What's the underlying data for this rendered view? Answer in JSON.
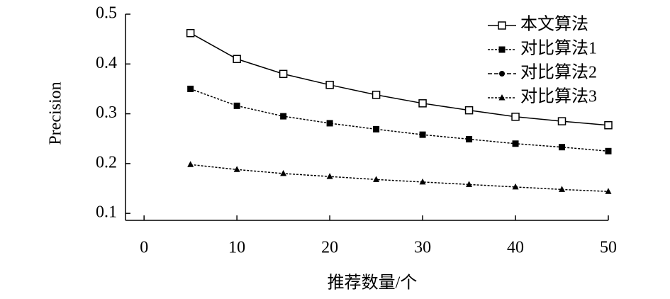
{
  "chart_data": {
    "type": "line",
    "xlabel": "推荐数量/个",
    "ylabel": "Precision",
    "x": [
      5,
      10,
      15,
      20,
      25,
      30,
      35,
      40,
      45,
      50
    ],
    "series": [
      {
        "name": "本文算法",
        "color": "#000000",
        "marker": "square-open",
        "dash": "solid",
        "values": [
          0.462,
          0.41,
          0.38,
          0.358,
          0.338,
          0.321,
          0.307,
          0.294,
          0.285,
          0.277
        ]
      },
      {
        "name": "对比算法1",
        "color": "#000000",
        "marker": "square",
        "dash": "dotted",
        "values": [
          0.35,
          0.316,
          0.295,
          0.281,
          0.269,
          0.258,
          0.249,
          0.24,
          0.233,
          0.225
        ]
      },
      {
        "name": "对比算法2",
        "color": "#000000",
        "marker": "circle",
        "dash": "dashed",
        "values": [
          null,
          null,
          null,
          null,
          null,
          null,
          null,
          null,
          null,
          null
        ]
      },
      {
        "name": "对比算法3",
        "color": "#000000",
        "marker": "triangle",
        "dash": "dotted",
        "values": [
          0.198,
          0.188,
          0.18,
          0.174,
          0.168,
          0.163,
          0.158,
          0.153,
          0.148,
          0.144
        ]
      }
    ],
    "xlim": [
      -2,
      50
    ],
    "xticks": [
      0,
      10,
      20,
      30,
      40,
      50
    ],
    "ylim": [
      0.086,
      0.5
    ],
    "yticks": [
      0.1,
      0.2,
      0.3,
      0.4,
      0.5
    ],
    "grid": false,
    "legend": "upper right"
  }
}
